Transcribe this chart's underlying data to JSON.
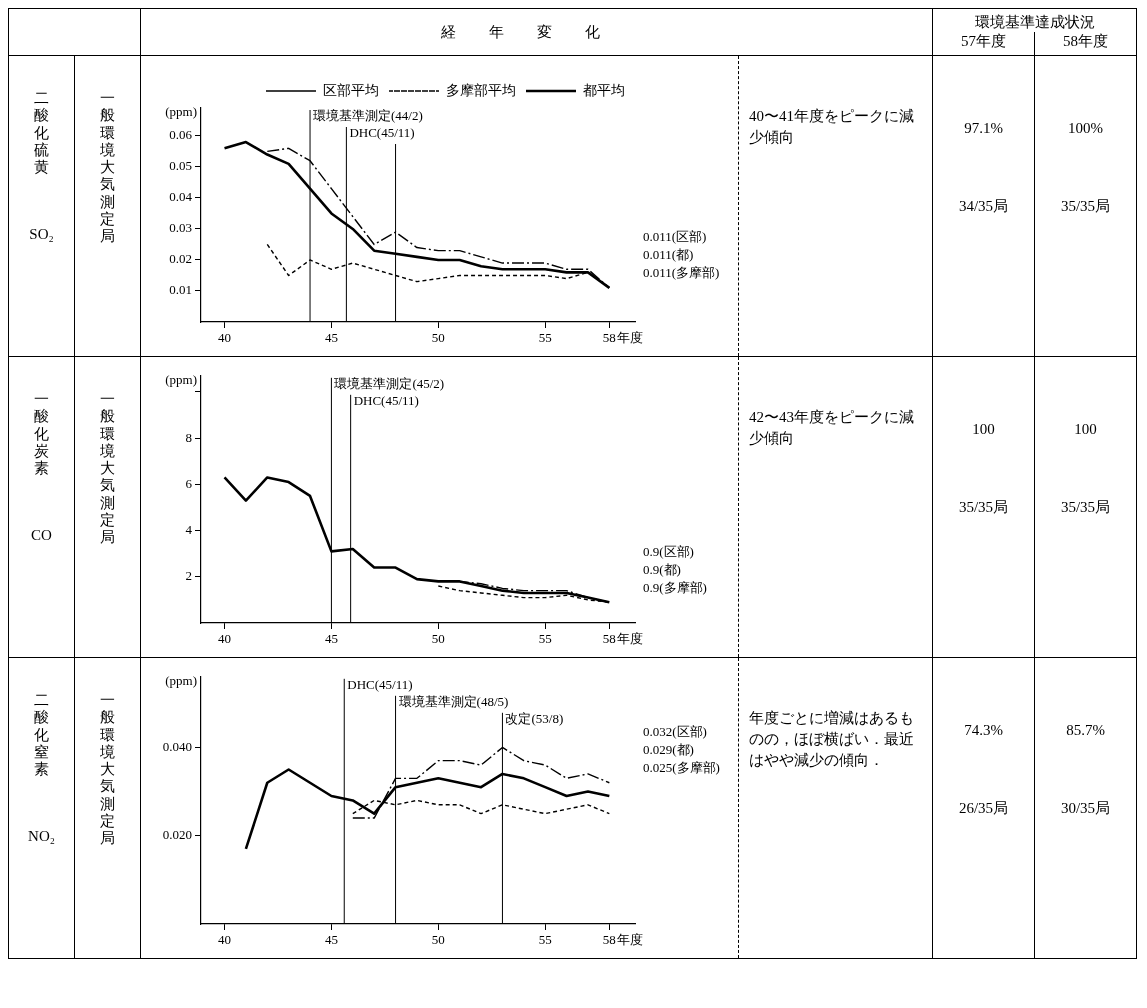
{
  "chart_data": [
    {
      "type": "other",
      "annotations": [
        "経年変化",
        "環境基準達成状況",
        "57年度",
        "58年度"
      ]
    },
    {
      "type": "line",
      "ylabel": "(ppm)",
      "xlabel": "年度",
      "legend": "top right",
      "grid": false,
      "xlim": [
        38.9,
        59.2
      ],
      "xticks": [
        40,
        45,
        50,
        55,
        58
      ],
      "ylim": [
        0,
        0.069
      ],
      "yticks": [
        {
          "value": 0.01,
          "label": "0.01"
        },
        {
          "value": 0.02,
          "label": "0.02"
        },
        {
          "value": 0.03,
          "label": "0.03"
        },
        {
          "value": 0.04,
          "label": "0.04"
        },
        {
          "value": 0.05,
          "label": "0.05"
        },
        {
          "value": 0.06,
          "label": "0.06"
        }
      ],
      "series": [
        {
          "name": "区部平均",
          "color": "#000000",
          "line_style": "dashed",
          "x": [
            42,
            43,
            44,
            45,
            46,
            47,
            48,
            49,
            50,
            51,
            52,
            53,
            54,
            55,
            56,
            57,
            58
          ],
          "values": [
            0.055,
            0.056,
            0.052,
            0.043,
            0.034,
            0.025,
            0.029,
            0.024,
            0.023,
            0.023,
            0.021,
            0.019,
            0.019,
            0.019,
            0.017,
            0.017,
            0.011
          ]
        },
        {
          "name": "多摩部平均",
          "color": "#000000",
          "line_style": "dotted",
          "x": [
            42,
            43,
            44,
            45,
            46,
            47,
            48,
            49,
            50,
            51,
            52,
            53,
            54,
            55,
            56,
            57,
            58
          ],
          "values": [
            0.025,
            0.015,
            0.02,
            0.017,
            0.019,
            0.017,
            0.015,
            0.013,
            0.014,
            0.015,
            0.015,
            0.015,
            0.015,
            0.015,
            0.014,
            0.016,
            0.011
          ]
        },
        {
          "name": "都平均",
          "color": "#000000",
          "line_style": "solid",
          "x": [
            40,
            41,
            42,
            43,
            44,
            45,
            46,
            47,
            48,
            49,
            50,
            51,
            52,
            53,
            54,
            55,
            56,
            57,
            58
          ],
          "values": [
            0.056,
            0.058,
            0.054,
            0.051,
            0.043,
            0.035,
            0.03,
            0.023,
            0.022,
            0.021,
            0.02,
            0.02,
            0.018,
            0.017,
            0.017,
            0.017,
            0.016,
            0.016,
            0.011
          ]
        }
      ],
      "ref_lines": [
        {
          "axis": "x",
          "value": 44,
          "label": "環境基準測定(44/2)"
        },
        {
          "axis": "x",
          "value": 45.7,
          "label": "DHC(45/11)"
        },
        {
          "axis": "x",
          "value": 48,
          "label": null
        }
      ],
      "annotations": [
        "二酸化硫黄",
        "SO₂",
        "一般環境大気測定局",
        "40〜41年度をピークに減少傾向",
        "97.1%",
        "34/35局",
        "100%",
        "35/35局",
        "0.011(区部)",
        "0.011(都)",
        "0.011(多摩部)"
      ]
    },
    {
      "type": "line",
      "ylabel": "(ppm)",
      "xlabel": "年度",
      "grid": false,
      "xlim": [
        38.9,
        59.2
      ],
      "xticks": [
        40,
        45,
        50,
        55,
        58
      ],
      "ylim": [
        0,
        10.7
      ],
      "yticks": [
        2,
        4,
        6,
        8,
        {
          "value": 10,
          "label": null
        }
      ],
      "series": [
        {
          "color": "#000000",
          "line_style": "dashed",
          "x": [
            49,
            50,
            51,
            52,
            53,
            54,
            55,
            56,
            57,
            58
          ],
          "values": [
            1.9,
            1.8,
            1.8,
            1.7,
            1.5,
            1.4,
            1.4,
            1.4,
            1.1,
            0.9
          ]
        },
        {
          "color": "#000000",
          "line_style": "dotted",
          "x": [
            50,
            51,
            52,
            53,
            54,
            55,
            56,
            57,
            58
          ],
          "values": [
            1.6,
            1.4,
            1.3,
            1.2,
            1.1,
            1.1,
            1.2,
            1.0,
            0.9
          ]
        },
        {
          "color": "#000000",
          "line_style": "solid",
          "x": [
            40,
            41,
            42,
            43,
            44,
            45,
            46,
            47,
            48,
            49,
            50,
            51,
            52,
            53,
            54,
            55,
            56,
            57,
            58
          ],
          "values": [
            6.3,
            5.3,
            6.3,
            6.1,
            5.5,
            3.1,
            3.2,
            2.4,
            2.4,
            1.9,
            1.8,
            1.8,
            1.6,
            1.4,
            1.3,
            1.3,
            1.3,
            1.1,
            0.9
          ]
        }
      ],
      "ref_lines": [
        {
          "axis": "x",
          "value": 45,
          "label": "環境基準測定(45/2)"
        },
        {
          "axis": "x",
          "value": 45.9,
          "label": "DHC(45/11)"
        }
      ],
      "annotations": [
        "一酸化炭素",
        "CO",
        "一般環境大気測定局",
        "42〜43年度をピークに減少傾向",
        "100",
        "35/35局",
        "100",
        "35/35局",
        "0.9(区部)",
        "0.9(都)",
        "0.9(多摩部)"
      ]
    },
    {
      "type": "line",
      "ylabel": "(ppm)",
      "xlabel": "年度",
      "grid": false,
      "xlim": [
        38.9,
        59.2
      ],
      "xticks": [
        40,
        45,
        50,
        55,
        58
      ],
      "ylim": [
        0,
        0.056
      ],
      "yticks": [
        {
          "value": 0.02,
          "label": "0.020"
        },
        {
          "value": 0.04,
          "label": "0.040"
        }
      ],
      "series": [
        {
          "color": "#000000",
          "line_style": "dashed",
          "x": [
            46,
            47,
            48,
            49,
            50,
            51,
            52,
            53,
            54,
            55,
            56,
            57,
            58
          ],
          "values": [
            0.024,
            0.024,
            0.033,
            0.033,
            0.037,
            0.037,
            0.036,
            0.04,
            0.037,
            0.036,
            0.033,
            0.034,
            0.032
          ]
        },
        {
          "color": "#000000",
          "line_style": "dotted",
          "x": [
            46,
            47,
            48,
            49,
            50,
            51,
            52,
            53,
            54,
            55,
            56,
            57,
            58
          ],
          "values": [
            0.025,
            0.028,
            0.027,
            0.028,
            0.027,
            0.027,
            0.025,
            0.027,
            0.026,
            0.025,
            0.026,
            0.027,
            0.025
          ]
        },
        {
          "color": "#000000",
          "line_style": "solid",
          "x": [
            41,
            42,
            43,
            44,
            45,
            46,
            47,
            48,
            49,
            50,
            51,
            52,
            53,
            54,
            55,
            56,
            57,
            58
          ],
          "values": [
            0.017,
            0.032,
            0.035,
            0.032,
            0.029,
            0.028,
            0.025,
            0.031,
            0.032,
            0.033,
            0.032,
            0.031,
            0.034,
            0.033,
            0.031,
            0.029,
            0.03,
            0.029
          ]
        }
      ],
      "ref_lines": [
        {
          "axis": "x",
          "value": 45.6,
          "label": "DHC(45/11)"
        },
        {
          "axis": "x",
          "value": 48,
          "label": "環境基準測定(48/5)"
        },
        {
          "axis": "x",
          "value": 53,
          "label": "改定(53/8)"
        }
      ],
      "annotations": [
        "二酸化窒素",
        "NO₂",
        "一般環境大気測定局",
        "年度ごとに増減はあるものの，ほぼ横ばい．最近はやや減少の傾向．",
        "74.3%",
        "26/35局",
        "85.7%",
        "30/35局",
        "0.032(区部)",
        "0.029(都)",
        "0.025(多摩部)"
      ]
    }
  ]
}
